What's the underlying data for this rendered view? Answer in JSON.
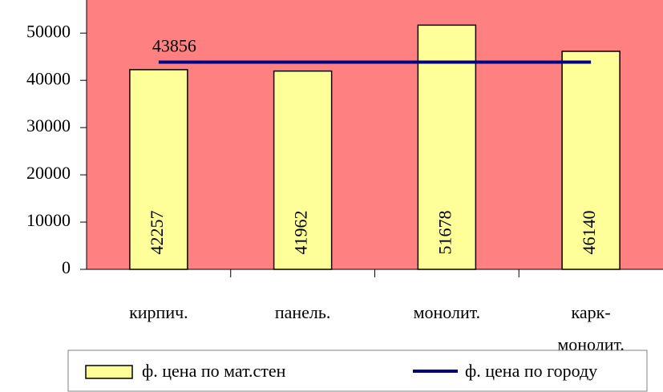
{
  "chart_data": {
    "type": "bar",
    "categories": [
      "кирпич.",
      "панель.",
      "монолит.",
      "карк-монолит."
    ],
    "series": [
      {
        "name": "ф. цена по мат.стен",
        "type": "bar",
        "color": "#ffff99",
        "values": [
          42257,
          41962,
          51678,
          46140
        ]
      },
      {
        "name": "ф. цена по городу",
        "type": "line",
        "color": "#000080",
        "values": [
          43856,
          43856,
          43856,
          43856
        ]
      }
    ],
    "ylim": [
      0,
      57000
    ],
    "yticks": [
      0,
      10000,
      20000,
      30000,
      40000,
      50000
    ],
    "background": "#ff8080"
  }
}
